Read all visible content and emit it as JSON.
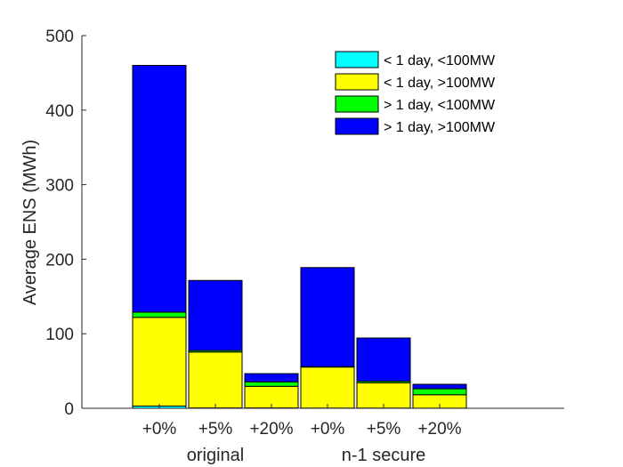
{
  "chart_data": {
    "type": "bar",
    "stacked": true,
    "categories": [
      "+0%",
      "+5%",
      "+20%",
      "+0%",
      "+5%",
      "+20%"
    ],
    "groups": [
      {
        "label": "original",
        "categories": [
          0,
          1,
          2
        ]
      },
      {
        "label": "n-1 secure",
        "categories": [
          3,
          4,
          5
        ]
      }
    ],
    "series": [
      {
        "name": "< 1 day, <100MW",
        "color": "#00ffff",
        "values": [
          3,
          0.5,
          0.5,
          0.3,
          0.3,
          0.2
        ]
      },
      {
        "name": "< 1 day, >100MW",
        "color": "#ffff00",
        "values": [
          119,
          75,
          29,
          55,
          34,
          18
        ]
      },
      {
        "name": "> 1 day, <100MW",
        "color": "#00ff00",
        "values": [
          7,
          2,
          6,
          0.5,
          2,
          8
        ]
      },
      {
        "name": "> 1 day, >100MW",
        "color": "#0000ff",
        "values": [
          331,
          94,
          11,
          133,
          58,
          6
        ]
      }
    ],
    "xlabel": "",
    "ylabel": "Average ENS (MWh)",
    "ylim": [
      0,
      500
    ],
    "yticks": [
      0,
      100,
      200,
      300,
      400,
      500
    ],
    "legend_position": "top-right",
    "grid": false
  }
}
